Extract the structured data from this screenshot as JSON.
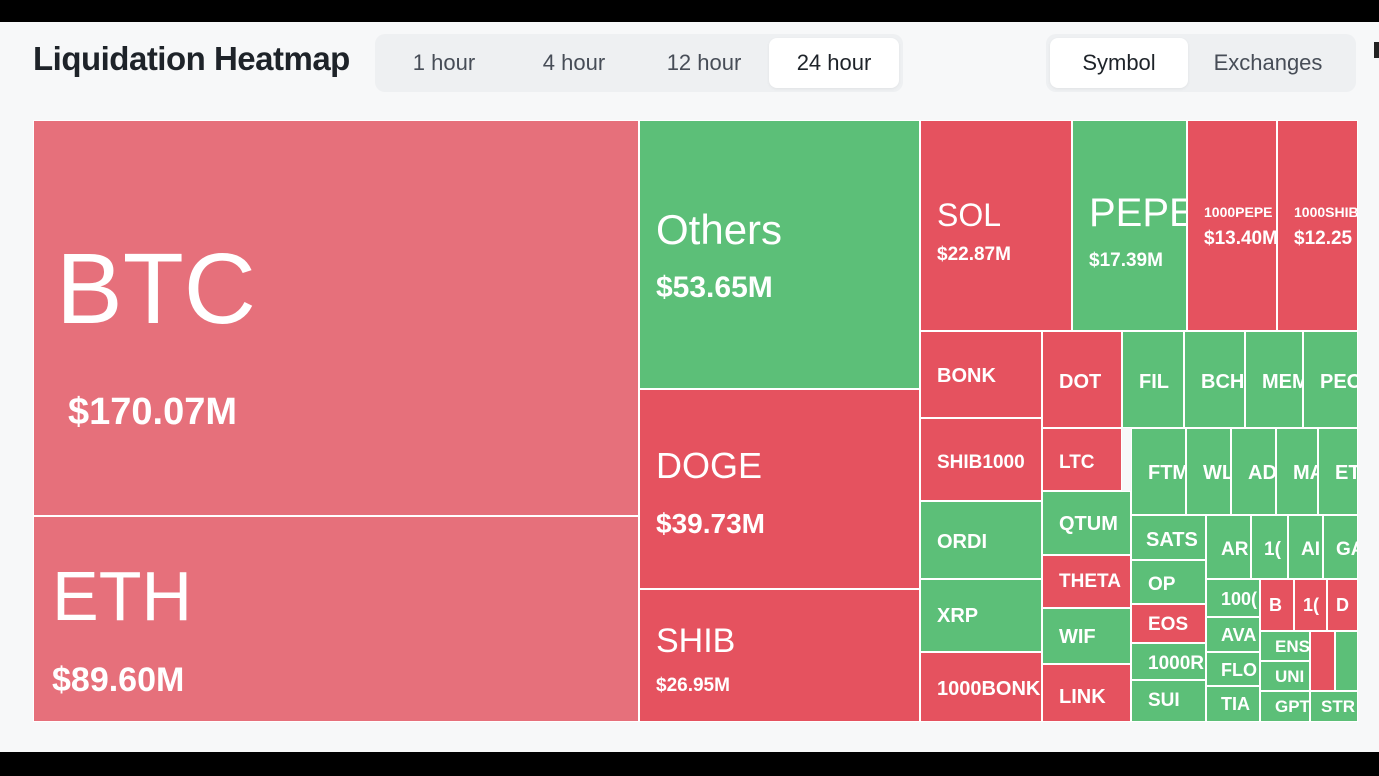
{
  "header": {
    "title": "Liquidation Heatmap",
    "time_tabs": [
      {
        "label": "1 hour",
        "active": false
      },
      {
        "label": "4 hour",
        "active": false
      },
      {
        "label": "12 hour",
        "active": false
      },
      {
        "label": "24 hour",
        "active": true
      }
    ],
    "view_tabs": [
      {
        "label": "Symbol",
        "active": true
      },
      {
        "label": "Exchanges",
        "active": false
      }
    ]
  },
  "colors": {
    "loss_red": "#e6707b",
    "red": "#e5525f",
    "green": "#5cbf78"
  },
  "chart_data": {
    "type": "treemap",
    "tiles": [
      {
        "symbol": "BTC",
        "value": "$170.07M",
        "color": "loss_red"
      },
      {
        "symbol": "ETH",
        "value": "$89.60M",
        "color": "loss_red"
      },
      {
        "symbol": "Others",
        "value": "$53.65M",
        "color": "green"
      },
      {
        "symbol": "DOGE",
        "value": "$39.73M",
        "color": "red"
      },
      {
        "symbol": "SHIB",
        "value": "$26.95M",
        "color": "red"
      },
      {
        "symbol": "SOL",
        "value": "$22.87M",
        "color": "red"
      },
      {
        "symbol": "PEPE",
        "value": "$17.39M",
        "color": "green"
      },
      {
        "symbol": "1000PEPE",
        "value": "$13.40M",
        "color": "red"
      },
      {
        "symbol": "1000SHIB",
        "value": "$12.25",
        "color": "red"
      },
      {
        "symbol": "BONK",
        "color": "red"
      },
      {
        "symbol": "SHIB1000",
        "color": "red"
      },
      {
        "symbol": "ORDI",
        "color": "green"
      },
      {
        "symbol": "XRP",
        "color": "green"
      },
      {
        "symbol": "1000BONK",
        "color": "red"
      },
      {
        "symbol": "DOT",
        "color": "red"
      },
      {
        "symbol": "LTC",
        "color": "red"
      },
      {
        "symbol": "QTUM",
        "color": "green"
      },
      {
        "symbol": "THETA",
        "color": "red"
      },
      {
        "symbol": "WIF",
        "color": "green"
      },
      {
        "symbol": "LINK",
        "color": "red"
      },
      {
        "symbol": "FIL",
        "color": "green"
      },
      {
        "symbol": "BCH",
        "color": "green"
      },
      {
        "symbol": "MEM",
        "color": "green"
      },
      {
        "symbol": "PEO",
        "color": "green"
      },
      {
        "symbol": "FTM",
        "color": "green"
      },
      {
        "symbol": "WL",
        "color": "green"
      },
      {
        "symbol": "AD",
        "color": "green"
      },
      {
        "symbol": "MA",
        "color": "green"
      },
      {
        "symbol": "ET",
        "color": "green"
      },
      {
        "symbol": "SATS",
        "color": "green"
      },
      {
        "symbol": "OP",
        "color": "green"
      },
      {
        "symbol": "EOS",
        "color": "red"
      },
      {
        "symbol": "1000R",
        "color": "green"
      },
      {
        "symbol": "SUI",
        "color": "green"
      },
      {
        "symbol": "AR",
        "color": "green"
      },
      {
        "symbol": "1(",
        "color": "green"
      },
      {
        "symbol": "AI",
        "color": "green"
      },
      {
        "symbol": "GA",
        "color": "green"
      },
      {
        "symbol": "100(",
        "color": "green"
      },
      {
        "symbol": "AVA",
        "color": "green"
      },
      {
        "symbol": "FLO",
        "color": "green"
      },
      {
        "symbol": "TIA",
        "color": "green"
      },
      {
        "symbol": "B",
        "color": "red"
      },
      {
        "symbol": "1(",
        "color": "red"
      },
      {
        "symbol": "D",
        "color": "red"
      },
      {
        "symbol": "ENS",
        "color": "green"
      },
      {
        "symbol": "UNI",
        "color": "green"
      },
      {
        "symbol": "GPT",
        "color": "green"
      },
      {
        "symbol": "",
        "color": "red"
      },
      {
        "symbol": "",
        "color": "green"
      },
      {
        "symbol": "STR",
        "color": "green"
      }
    ]
  }
}
